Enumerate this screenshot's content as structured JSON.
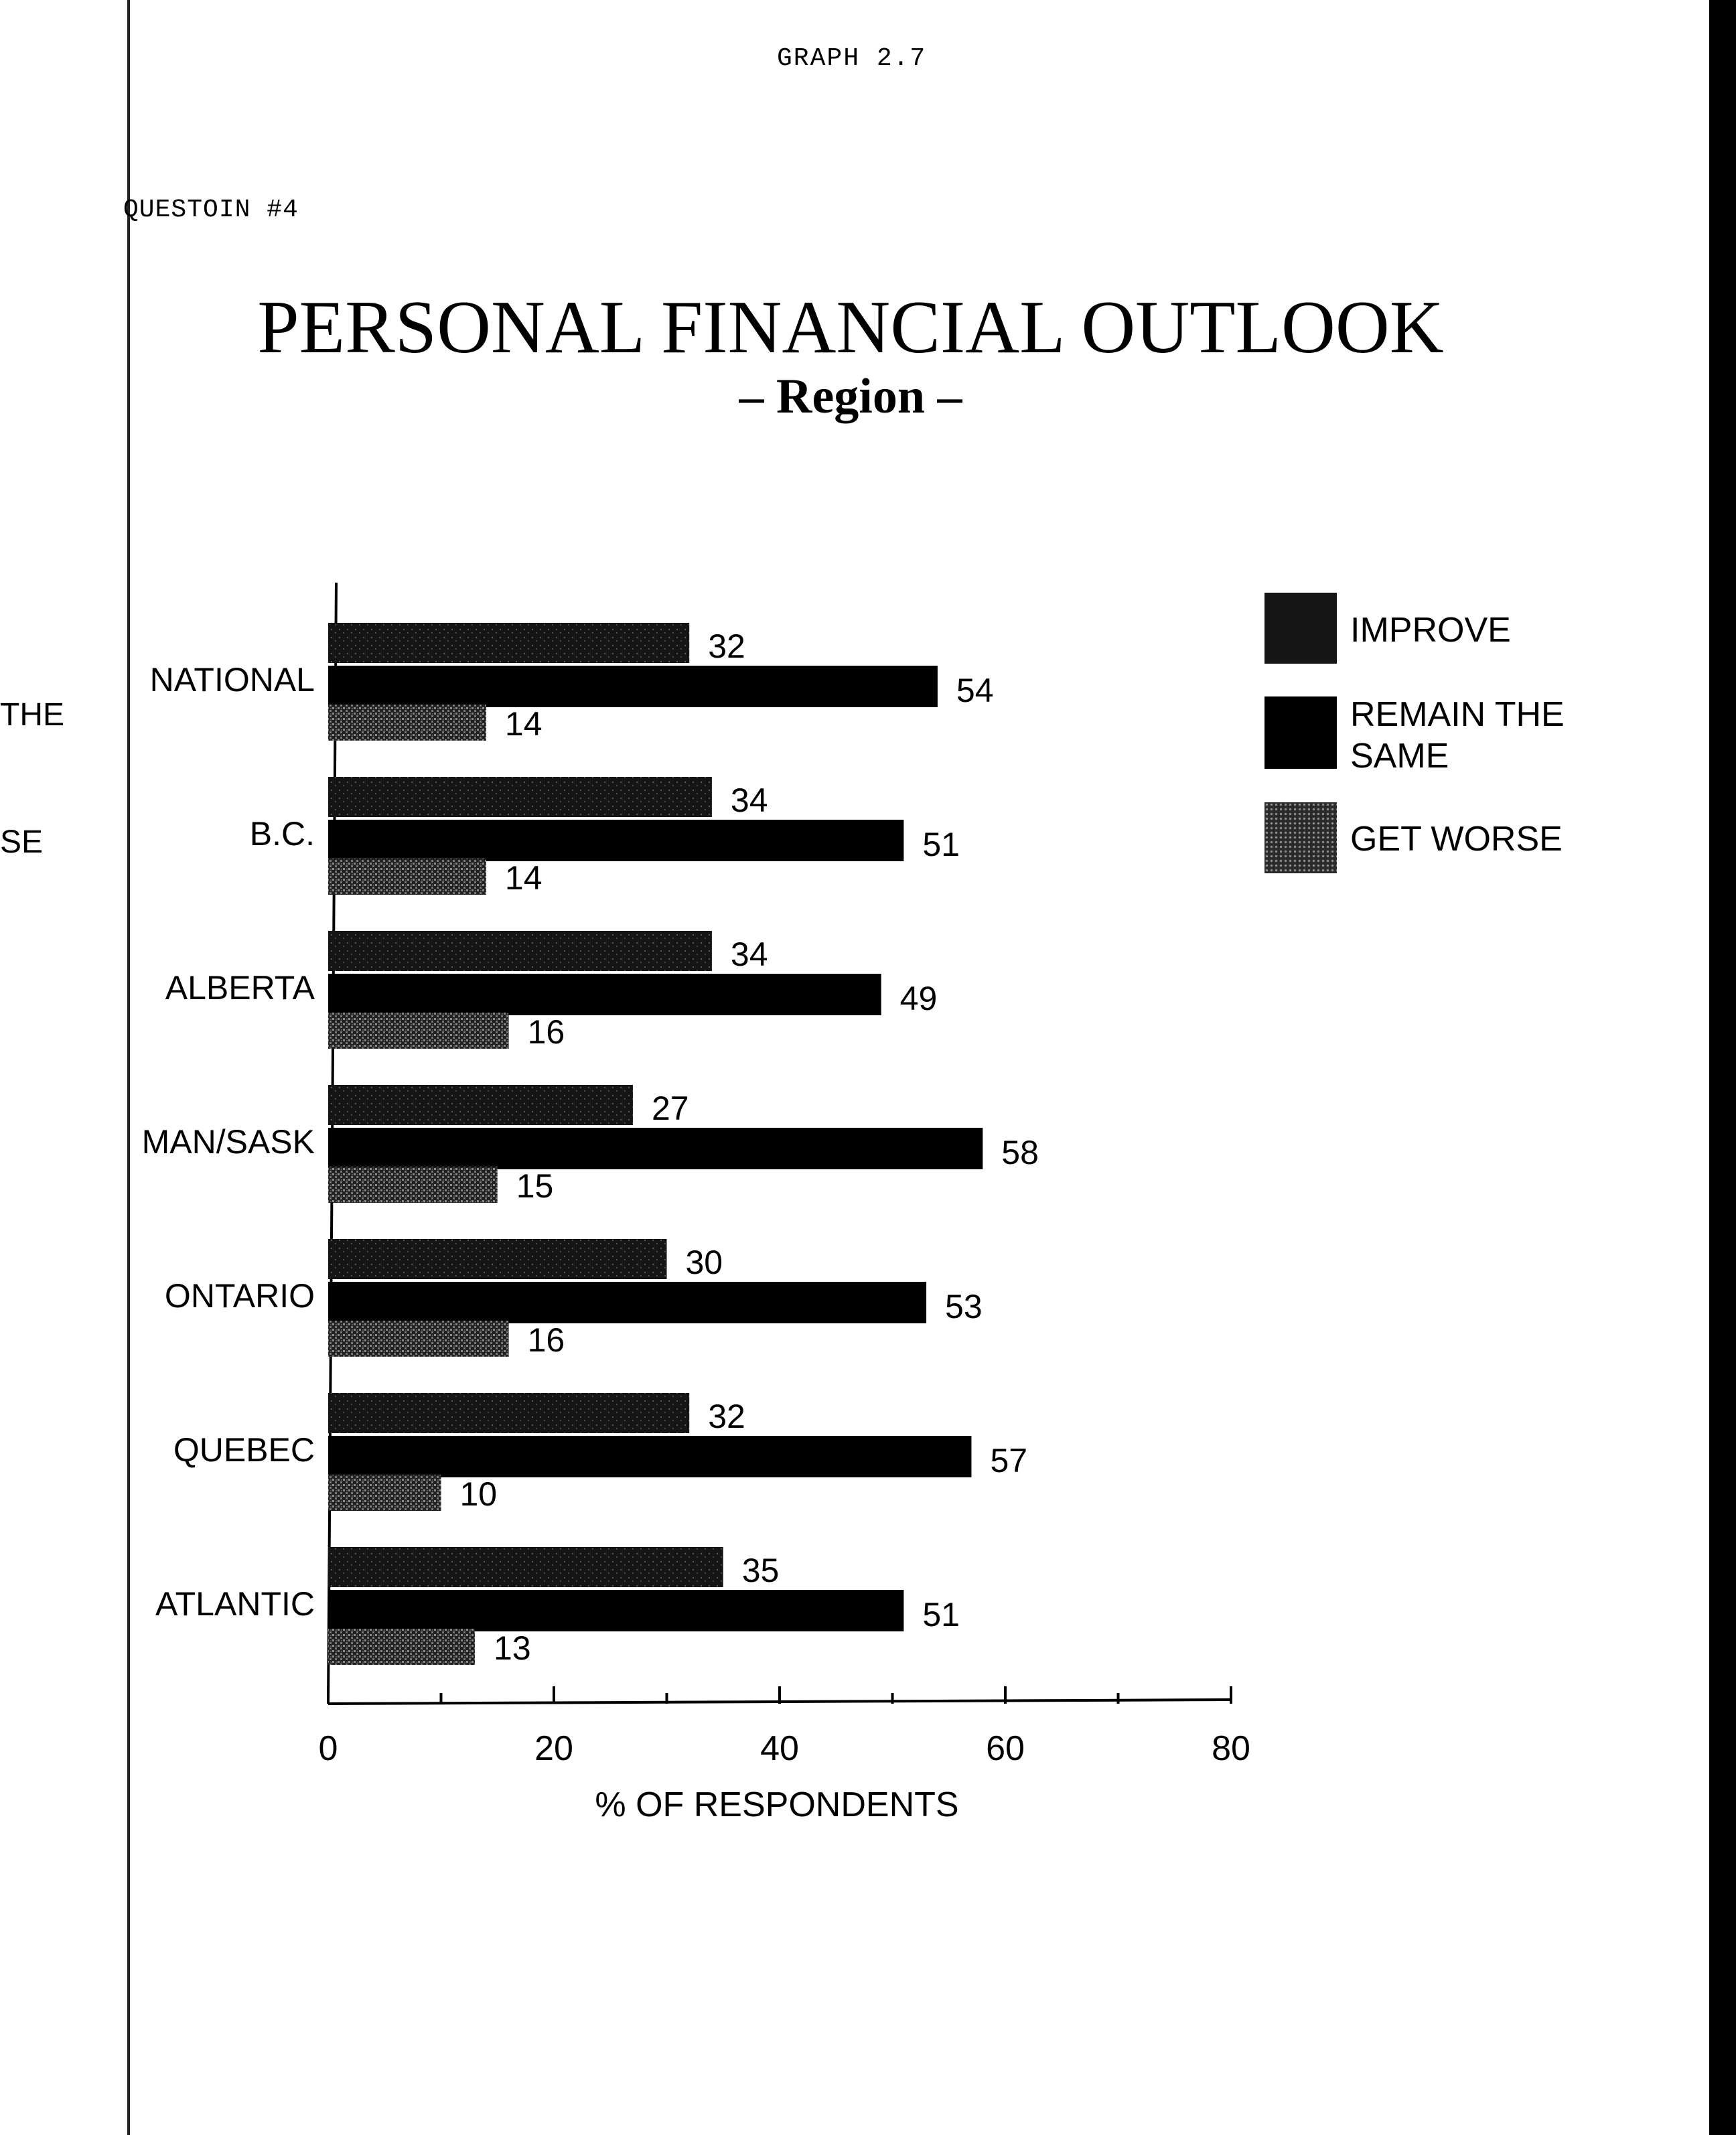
{
  "header": {
    "graph_label": "GRAPH 2.7",
    "question_label": "QUESTOIN #4"
  },
  "margin_fragments": [
    "THE",
    "SE"
  ],
  "colors": {
    "improve": "#1c1c1c",
    "remain_the_same": "#000000",
    "get_worse": "#3a3a3a",
    "background": "#ffffff"
  },
  "chart_data": {
    "type": "bar",
    "orientation": "horizontal",
    "title": "PERSONAL FINANCIAL OUTLOOK",
    "subtitle": "– Region –",
    "xlabel": "% OF RESPONDENTS",
    "ylabel": "",
    "xlim": [
      0,
      80
    ],
    "x_ticks": [
      0,
      20,
      40,
      60,
      80
    ],
    "categories": [
      "NATIONAL",
      "B.C.",
      "ALBERTA",
      "MAN/SASK",
      "ONTARIO",
      "QUEBEC",
      "ATLANTIC"
    ],
    "series": [
      {
        "name": "IMPROVE",
        "values": [
          32,
          34,
          34,
          27,
          30,
          32,
          35
        ]
      },
      {
        "name": "REMAIN THE SAME",
        "values": [
          54,
          51,
          49,
          58,
          53,
          57,
          51
        ]
      },
      {
        "name": "GET WORSE",
        "values": [
          14,
          14,
          16,
          15,
          16,
          10,
          13
        ]
      }
    ],
    "legend_position": "top-right",
    "grid": false
  }
}
